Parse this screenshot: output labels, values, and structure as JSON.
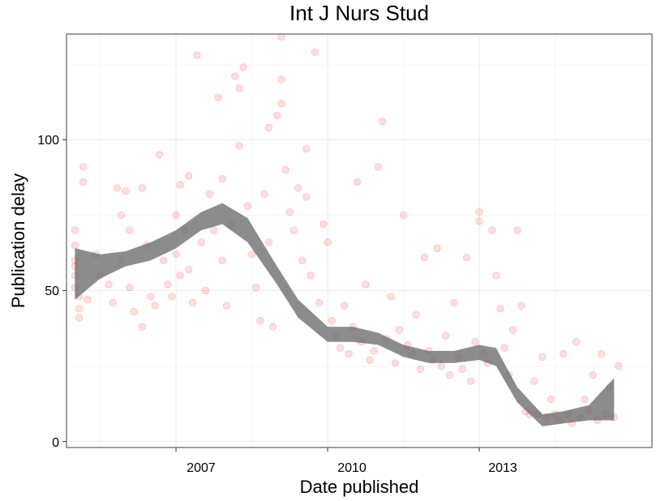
{
  "chart_data": {
    "type": "scatter",
    "title": "Int J Nurs Stud",
    "xlabel": "Date published",
    "ylabel": "Publication delay",
    "x_ticks": [
      "2007",
      "2010",
      "2013"
    ],
    "y_ticks": [
      "0",
      "50",
      "100"
    ],
    "xlim": [
      "2004-11-01",
      "2016-06-01"
    ],
    "ylim": [
      -2,
      135
    ],
    "grid": true,
    "legend": "none",
    "point_color": "#ff0000",
    "point_opacity": 0.13,
    "band_color": "#666666",
    "points": [
      {
        "x": "2005-01",
        "y": 70
      },
      {
        "x": "2005-01",
        "y": 65
      },
      {
        "x": "2005-01",
        "y": 60
      },
      {
        "x": "2005-01",
        "y": 58
      },
      {
        "x": "2005-01",
        "y": 55
      },
      {
        "x": "2005-01",
        "y": 51
      },
      {
        "x": "2005-02",
        "y": 48
      },
      {
        "x": "2005-02",
        "y": 44
      },
      {
        "x": "2005-02",
        "y": 41
      },
      {
        "x": "2005-03",
        "y": 91
      },
      {
        "x": "2005-03",
        "y": 86
      },
      {
        "x": "2005-04",
        "y": 47
      },
      {
        "x": "2005-06",
        "y": 62
      },
      {
        "x": "2005-07",
        "y": 55
      },
      {
        "x": "2005-09",
        "y": 52
      },
      {
        "x": "2005-10",
        "y": 46
      },
      {
        "x": "2005-11",
        "y": 84
      },
      {
        "x": "2005-12",
        "y": 75
      },
      {
        "x": "2005-12",
        "y": 60
      },
      {
        "x": "2006-01",
        "y": 83
      },
      {
        "x": "2006-02",
        "y": 70
      },
      {
        "x": "2006-02",
        "y": 51
      },
      {
        "x": "2006-03",
        "y": 43
      },
      {
        "x": "2006-05",
        "y": 84
      },
      {
        "x": "2006-05",
        "y": 38
      },
      {
        "x": "2006-06",
        "y": 65
      },
      {
        "x": "2006-07",
        "y": 48
      },
      {
        "x": "2006-08",
        "y": 45
      },
      {
        "x": "2006-09",
        "y": 95
      },
      {
        "x": "2006-10",
        "y": 60
      },
      {
        "x": "2006-11",
        "y": 52
      },
      {
        "x": "2006-12",
        "y": 48
      },
      {
        "x": "2007-01",
        "y": 75
      },
      {
        "x": "2007-01",
        "y": 62
      },
      {
        "x": "2007-02",
        "y": 85
      },
      {
        "x": "2007-02",
        "y": 55
      },
      {
        "x": "2007-03",
        "y": 70
      },
      {
        "x": "2007-04",
        "y": 88
      },
      {
        "x": "2007-04",
        "y": 57
      },
      {
        "x": "2007-05",
        "y": 46
      },
      {
        "x": "2007-06",
        "y": 128
      },
      {
        "x": "2007-07",
        "y": 66
      },
      {
        "x": "2007-08",
        "y": 50
      },
      {
        "x": "2007-09",
        "y": 82
      },
      {
        "x": "2007-10",
        "y": 70
      },
      {
        "x": "2007-11",
        "y": 114
      },
      {
        "x": "2007-12",
        "y": 87
      },
      {
        "x": "2007-12",
        "y": 60
      },
      {
        "x": "2008-01",
        "y": 45
      },
      {
        "x": "2008-02",
        "y": 72
      },
      {
        "x": "2008-03",
        "y": 121
      },
      {
        "x": "2008-04",
        "y": 117
      },
      {
        "x": "2008-04",
        "y": 98
      },
      {
        "x": "2008-05",
        "y": 124
      },
      {
        "x": "2008-06",
        "y": 78
      },
      {
        "x": "2008-07",
        "y": 62
      },
      {
        "x": "2008-08",
        "y": 51
      },
      {
        "x": "2008-09",
        "y": 40
      },
      {
        "x": "2008-10",
        "y": 82
      },
      {
        "x": "2008-11",
        "y": 104
      },
      {
        "x": "2008-11",
        "y": 66
      },
      {
        "x": "2008-12",
        "y": 38
      },
      {
        "x": "2009-01",
        "y": 108
      },
      {
        "x": "2009-02",
        "y": 134
      },
      {
        "x": "2009-02",
        "y": 120
      },
      {
        "x": "2009-02",
        "y": 112
      },
      {
        "x": "2009-03",
        "y": 90
      },
      {
        "x": "2009-04",
        "y": 76
      },
      {
        "x": "2009-05",
        "y": 70
      },
      {
        "x": "2009-06",
        "y": 84
      },
      {
        "x": "2009-07",
        "y": 60
      },
      {
        "x": "2009-08",
        "y": 97
      },
      {
        "x": "2009-08",
        "y": 81
      },
      {
        "x": "2009-09",
        "y": 55
      },
      {
        "x": "2009-10",
        "y": 129
      },
      {
        "x": "2009-11",
        "y": 46
      },
      {
        "x": "2009-12",
        "y": 72
      },
      {
        "x": "2010-01",
        "y": 66
      },
      {
        "x": "2010-02",
        "y": 40
      },
      {
        "x": "2010-03",
        "y": 35
      },
      {
        "x": "2010-04",
        "y": 31
      },
      {
        "x": "2010-05",
        "y": 45
      },
      {
        "x": "2010-06",
        "y": 29
      },
      {
        "x": "2010-07",
        "y": 38
      },
      {
        "x": "2010-08",
        "y": 86
      },
      {
        "x": "2010-09",
        "y": 33
      },
      {
        "x": "2010-10",
        "y": 52
      },
      {
        "x": "2010-11",
        "y": 27
      },
      {
        "x": "2010-12",
        "y": 30
      },
      {
        "x": "2011-01",
        "y": 91
      },
      {
        "x": "2011-02",
        "y": 106
      },
      {
        "x": "2011-03",
        "y": 34
      },
      {
        "x": "2011-04",
        "y": 48
      },
      {
        "x": "2011-05",
        "y": 26
      },
      {
        "x": "2011-06",
        "y": 37
      },
      {
        "x": "2011-07",
        "y": 75
      },
      {
        "x": "2011-08",
        "y": 32
      },
      {
        "x": "2011-09",
        "y": 29
      },
      {
        "x": "2011-10",
        "y": 42
      },
      {
        "x": "2011-11",
        "y": 24
      },
      {
        "x": "2011-12",
        "y": 61
      },
      {
        "x": "2012-01",
        "y": 30
      },
      {
        "x": "2012-02",
        "y": 27
      },
      {
        "x": "2012-03",
        "y": 64
      },
      {
        "x": "2012-04",
        "y": 25
      },
      {
        "x": "2012-05",
        "y": 35
      },
      {
        "x": "2012-06",
        "y": 22
      },
      {
        "x": "2012-07",
        "y": 46
      },
      {
        "x": "2012-08",
        "y": 28
      },
      {
        "x": "2012-09",
        "y": 24
      },
      {
        "x": "2012-10",
        "y": 61
      },
      {
        "x": "2012-11",
        "y": 20
      },
      {
        "x": "2012-12",
        "y": 33
      },
      {
        "x": "2013-01",
        "y": 73
      },
      {
        "x": "2013-01",
        "y": 76
      },
      {
        "x": "2013-02",
        "y": 29
      },
      {
        "x": "2013-03",
        "y": 26
      },
      {
        "x": "2013-04",
        "y": 70
      },
      {
        "x": "2013-05",
        "y": 55
      },
      {
        "x": "2013-06",
        "y": 44
      },
      {
        "x": "2013-07",
        "y": 31
      },
      {
        "x": "2013-08",
        "y": 22
      },
      {
        "x": "2013-09",
        "y": 37
      },
      {
        "x": "2013-10",
        "y": 70
      },
      {
        "x": "2013-11",
        "y": 45
      },
      {
        "x": "2013-12",
        "y": 10
      },
      {
        "x": "2014-01",
        "y": 9
      },
      {
        "x": "2014-02",
        "y": 20
      },
      {
        "x": "2014-03",
        "y": 9
      },
      {
        "x": "2014-04",
        "y": 28
      },
      {
        "x": "2014-05",
        "y": 8
      },
      {
        "x": "2014-06",
        "y": 14
      },
      {
        "x": "2014-07",
        "y": 9
      },
      {
        "x": "2014-08",
        "y": 7
      },
      {
        "x": "2014-09",
        "y": 29
      },
      {
        "x": "2014-10",
        "y": 9
      },
      {
        "x": "2014-11",
        "y": 6
      },
      {
        "x": "2014-12",
        "y": 33
      },
      {
        "x": "2015-01",
        "y": 8
      },
      {
        "x": "2015-02",
        "y": 14
      },
      {
        "x": "2015-03",
        "y": 10
      },
      {
        "x": "2015-04",
        "y": 22
      },
      {
        "x": "2015-05",
        "y": 7
      },
      {
        "x": "2015-06",
        "y": 29
      },
      {
        "x": "2015-07",
        "y": 9
      },
      {
        "x": "2015-08",
        "y": 18
      },
      {
        "x": "2015-09",
        "y": 8
      },
      {
        "x": "2015-10",
        "y": 25
      }
    ],
    "smooth_band": [
      {
        "x": "2005-01",
        "lo": 47,
        "hi": 64
      },
      {
        "x": "2005-07",
        "lo": 54,
        "hi": 62
      },
      {
        "x": "2006-01",
        "lo": 58,
        "hi": 63
      },
      {
        "x": "2006-07",
        "lo": 60,
        "hi": 66
      },
      {
        "x": "2007-01",
        "lo": 64,
        "hi": 70
      },
      {
        "x": "2007-07",
        "lo": 70,
        "hi": 76
      },
      {
        "x": "2007-12",
        "lo": 72,
        "hi": 79
      },
      {
        "x": "2008-06",
        "lo": 66,
        "hi": 74
      },
      {
        "x": "2009-01",
        "lo": 52,
        "hi": 58
      },
      {
        "x": "2009-06",
        "lo": 41,
        "hi": 47
      },
      {
        "x": "2010-01",
        "lo": 33,
        "hi": 38
      },
      {
        "x": "2010-07",
        "lo": 33,
        "hi": 38
      },
      {
        "x": "2011-01",
        "lo": 32,
        "hi": 36
      },
      {
        "x": "2011-07",
        "lo": 28,
        "hi": 32
      },
      {
        "x": "2012-01",
        "lo": 26,
        "hi": 30
      },
      {
        "x": "2012-07",
        "lo": 26,
        "hi": 30
      },
      {
        "x": "2013-01",
        "lo": 27,
        "hi": 32
      },
      {
        "x": "2013-05",
        "lo": 25,
        "hi": 31
      },
      {
        "x": "2013-10",
        "lo": 13,
        "hi": 18
      },
      {
        "x": "2014-04",
        "lo": 5,
        "hi": 9
      },
      {
        "x": "2014-09",
        "lo": 6,
        "hi": 10
      },
      {
        "x": "2015-03",
        "lo": 7,
        "hi": 12
      },
      {
        "x": "2015-09",
        "lo": 7,
        "hi": 21
      }
    ]
  }
}
